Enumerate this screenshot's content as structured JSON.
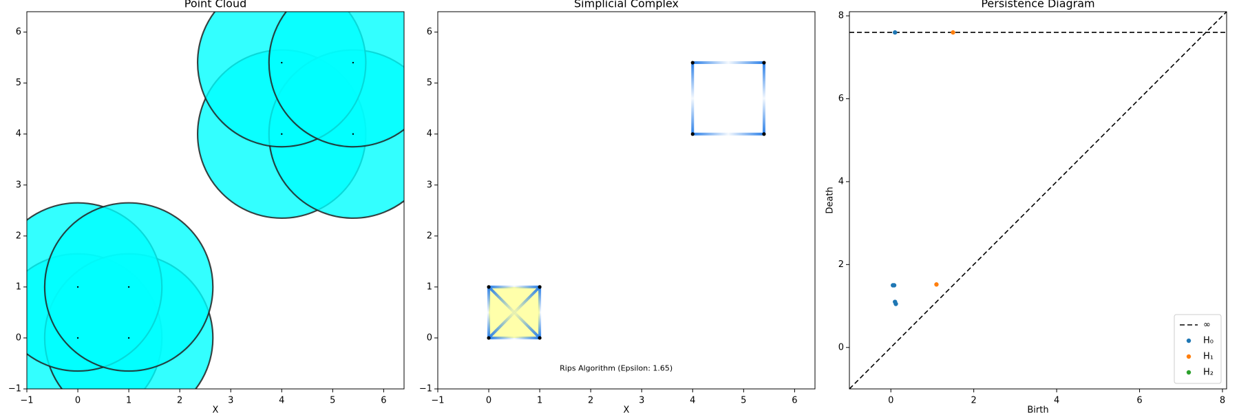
{
  "chart_data": [
    {
      "type": "cloud",
      "title": "Point Cloud",
      "xlabel": "X",
      "x": [
        0,
        1,
        0,
        1,
        4,
        5.4,
        4,
        5.4
      ],
      "y": [
        0,
        0,
        1,
        1,
        4,
        4,
        5.4,
        5.4
      ],
      "radius": 1.65,
      "color": "#00ffff",
      "point_color": "#000000",
      "xlim": [
        -1,
        6.4
      ],
      "ylim": [
        -1,
        6.4
      ],
      "xticks": [
        {
          "value": -1,
          "label": "−1"
        },
        0,
        1,
        2,
        3,
        4,
        5,
        6
      ],
      "yticks": [
        {
          "value": -1,
          "label": "−1"
        },
        0,
        1,
        2,
        3,
        4,
        5,
        6
      ]
    },
    {
      "type": "complex",
      "title": "Simplicial Complex",
      "xlabel": "X",
      "x": [
        0,
        1,
        0,
        1,
        4,
        5.4,
        4,
        5.4
      ],
      "y": [
        0,
        0,
        1,
        1,
        4,
        4,
        5.4,
        5.4
      ],
      "edges": [
        [
          0,
          1
        ],
        [
          0,
          2
        ],
        [
          0,
          3
        ],
        [
          1,
          2
        ],
        [
          1,
          3
        ],
        [
          2,
          3
        ],
        [
          4,
          5
        ],
        [
          4,
          6
        ],
        [
          5,
          7
        ],
        [
          6,
          7
        ]
      ],
      "triangles": [
        [
          0,
          1,
          2
        ],
        [
          0,
          1,
          3
        ],
        [
          0,
          2,
          3
        ],
        [
          1,
          2,
          3
        ]
      ],
      "annotation": "Rips Algorithm (Epsilon: 1.65)",
      "annotation_x": 2.5,
      "annotation_y": -0.6,
      "edge_color": "#2a7fe8",
      "face_color": "#ffff99",
      "point_color": "#000000",
      "xlim": [
        -1,
        6.4
      ],
      "ylim": [
        -1,
        6.4
      ],
      "xticks": [
        {
          "value": -1,
          "label": "−1"
        },
        0,
        1,
        2,
        3,
        4,
        5,
        6
      ],
      "yticks": [
        {
          "value": -1,
          "label": "−1"
        },
        0,
        1,
        2,
        3,
        4,
        5,
        6
      ]
    },
    {
      "type": "persistence",
      "title": "Persistence Diagram",
      "xlabel": "Birth",
      "ylabel": "Death",
      "series": [
        {
          "name": "H₀",
          "color": "#1f77b4",
          "x": [
            0.1,
            0.05,
            0.08,
            0.1,
            0.12
          ],
          "y": [
            7.6,
            1.5,
            1.5,
            1.1,
            1.05
          ]
        },
        {
          "name": "H₁",
          "color": "#ff7f0e",
          "x": [
            1.5,
            1.1
          ],
          "y": [
            7.6,
            1.52
          ]
        },
        {
          "name": "H₂",
          "color": "#2ca02c",
          "x": [],
          "y": []
        }
      ],
      "infinity": {
        "value": 7.6,
        "label": "∞"
      },
      "diagonal": true,
      "legend": "lower right",
      "xlim": [
        -1,
        8.1
      ],
      "ylim": [
        -1,
        8.1
      ],
      "xticks": [
        0,
        2,
        4,
        6,
        8
      ],
      "yticks": [
        0,
        2,
        4,
        6,
        8
      ]
    }
  ]
}
